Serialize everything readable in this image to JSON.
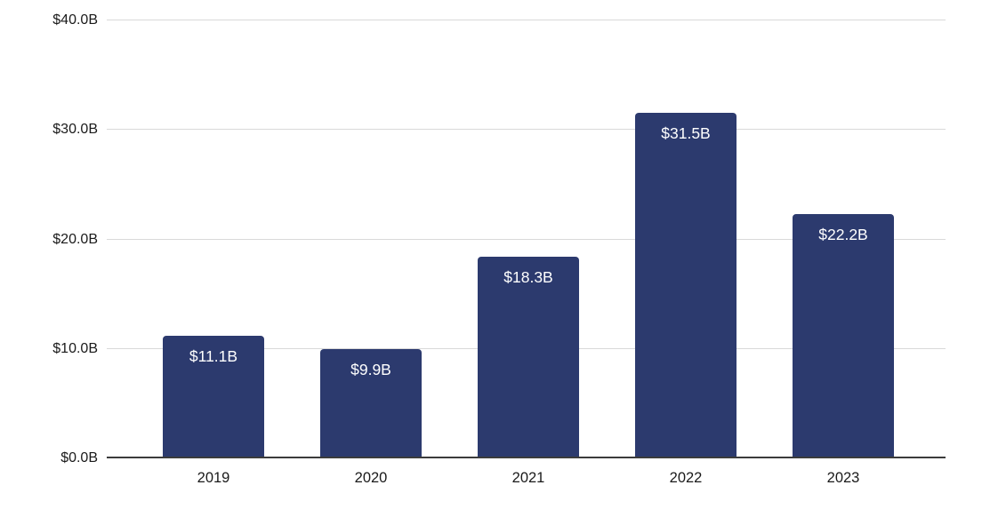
{
  "chart_data": {
    "type": "bar",
    "title": "",
    "xlabel": "",
    "ylabel": "",
    "categories": [
      "2019",
      "2020",
      "2021",
      "2022",
      "2023"
    ],
    "values": [
      11.1,
      9.9,
      18.3,
      31.5,
      22.2
    ],
    "bar_labels": [
      "$11.1B",
      "$9.9B",
      "$18.3B",
      "$31.5B",
      "$22.2B"
    ],
    "y_ticks": [
      {
        "value": 0,
        "label": "$0.0B"
      },
      {
        "value": 10,
        "label": "$10.0B"
      },
      {
        "value": 20,
        "label": "$20.0B"
      },
      {
        "value": 30,
        "label": "$30.0B"
      },
      {
        "value": 40,
        "label": "$40.0B"
      }
    ],
    "ylim": [
      0,
      40
    ],
    "grid": "horizontal",
    "legend": "none",
    "colors": {
      "bar": "#2c3a6e",
      "bar_label_text": "#ffffff",
      "gridline": "#d9d9d9",
      "axis_line": "#3c3c3c",
      "tick_text": "#1a1a1a",
      "background": "#ffffff"
    }
  }
}
